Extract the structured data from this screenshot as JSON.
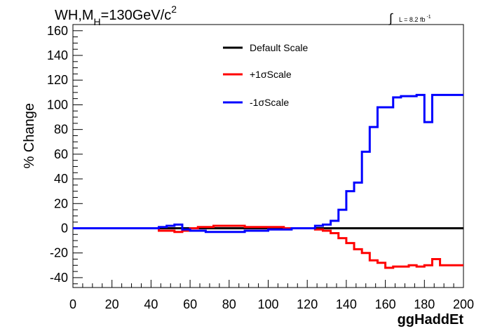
{
  "chart_data": {
    "type": "line",
    "title": "WH,M",
    "title_sub": "H",
    "title_rest": "=130GeV/c",
    "title_sup": "2",
    "lumi_label": "L = 8.2 fb",
    "lumi_sup": "-1",
    "xlabel": "ggHaddEt",
    "ylabel": "% Change",
    "xlim": [
      0,
      200
    ],
    "ylim": [
      -48,
      165
    ],
    "x_ticks": [
      "0",
      "20",
      "40",
      "60",
      "80",
      "100",
      "120",
      "140",
      "160",
      "180",
      "200"
    ],
    "y_ticks": [
      "-40",
      "-20",
      "0",
      "20",
      "40",
      "60",
      "80",
      "100",
      "120",
      "140",
      "160"
    ],
    "bin_width": 4,
    "bin_edges": [
      0,
      4,
      8,
      12,
      16,
      20,
      24,
      28,
      32,
      36,
      40,
      44,
      48,
      52,
      56,
      60,
      64,
      68,
      72,
      76,
      80,
      84,
      88,
      92,
      96,
      100,
      104,
      108,
      112,
      116,
      120,
      124,
      128,
      132,
      136,
      140,
      144,
      148,
      152,
      156,
      160,
      164,
      168,
      172,
      176,
      180,
      184,
      188,
      192,
      196,
      200
    ],
    "legend_position": "top-center",
    "series": [
      {
        "name": "Default Scale",
        "color": "#000000",
        "values": [
          0,
          0,
          0,
          0,
          0,
          0,
          0,
          0,
          0,
          0,
          0,
          0,
          0,
          0,
          0,
          0,
          0,
          0,
          0,
          0,
          0,
          0,
          0,
          0,
          0,
          0,
          0,
          0,
          0,
          0,
          0,
          0,
          0,
          0,
          0,
          0,
          0,
          0,
          0,
          0,
          0,
          0,
          0,
          0,
          0,
          0,
          0,
          0,
          0,
          0
        ]
      },
      {
        "name": "+1σScale",
        "color": "#ff0000",
        "values": [
          0,
          0,
          0,
          0,
          0,
          0,
          0,
          0,
          0,
          0,
          0,
          -2,
          -2,
          -3,
          -2,
          0,
          1,
          1,
          2,
          2,
          2,
          2,
          1,
          1,
          1,
          1,
          1,
          0,
          0,
          0,
          0,
          -1,
          -2,
          -4,
          -8,
          -12,
          -17,
          -20,
          -26,
          -28,
          -32,
          -31,
          -31,
          -30,
          -31,
          -30,
          -25,
          -30,
          -30,
          -30
        ]
      },
      {
        "name": "-1σScale",
        "color": "#0000ff",
        "values": [
          0,
          0,
          0,
          0,
          0,
          0,
          0,
          0,
          0,
          0,
          0,
          1,
          2,
          3,
          -1,
          -2,
          -2,
          -3,
          -3,
          -3,
          -3,
          -3,
          -2,
          -2,
          -2,
          -1,
          -1,
          -1,
          0,
          0,
          0,
          2,
          3,
          6,
          15,
          30,
          37,
          62,
          82,
          98,
          98,
          106,
          107,
          107,
          108,
          86,
          108,
          108,
          108,
          108
        ]
      }
    ]
  }
}
